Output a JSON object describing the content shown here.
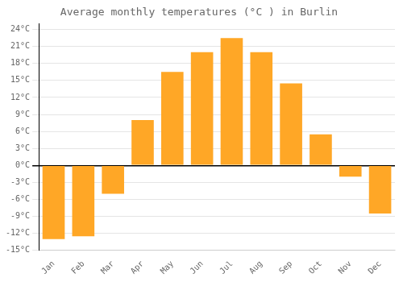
{
  "chart_data": {
    "type": "bar",
    "title": "Average monthly temperatures (°C ) in Burlin",
    "categories": [
      "Jan",
      "Feb",
      "Mar",
      "Apr",
      "May",
      "Jun",
      "Jul",
      "Aug",
      "Sep",
      "Oct",
      "Nov",
      "Dec"
    ],
    "values": [
      -13,
      -12.5,
      -5,
      8,
      16.5,
      20,
      22.5,
      20,
      14.5,
      5.5,
      -2,
      -8.5
    ],
    "color": "#FFA726",
    "ylim": [
      -15,
      25
    ],
    "yticks": [
      {
        "value": -15,
        "label": "-15°C"
      },
      {
        "value": -12,
        "label": "-12°C"
      },
      {
        "value": -9,
        "label": "-9°C"
      },
      {
        "value": -6,
        "label": "-6°C"
      },
      {
        "value": -3,
        "label": "-3°C"
      },
      {
        "value": 0,
        "label": "0°C"
      },
      {
        "value": 3,
        "label": "3°C"
      },
      {
        "value": 6,
        "label": "6°C"
      },
      {
        "value": 9,
        "label": "9°C"
      },
      {
        "value": 12,
        "label": "12°C"
      },
      {
        "value": 15,
        "label": "15°C"
      },
      {
        "value": 18,
        "label": "18°C"
      },
      {
        "value": 21,
        "label": "21°C"
      },
      {
        "value": 24,
        "label": "24°C"
      }
    ],
    "grid": true
  }
}
